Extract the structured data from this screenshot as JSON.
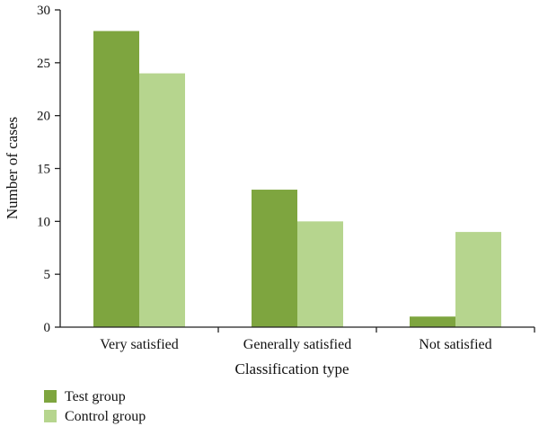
{
  "chart_data": {
    "type": "bar",
    "categories": [
      "Very satisfied",
      "Generally satisfied",
      "Not satisfied"
    ],
    "series": [
      {
        "name": "Test group",
        "values": [
          28,
          13,
          1
        ],
        "color": "#7ea53f"
      },
      {
        "name": "Control group",
        "values": [
          24,
          10,
          9
        ],
        "color": "#b6d58e"
      }
    ],
    "xlabel": "Classification type",
    "ylabel": "Number of cases",
    "ylim": [
      0,
      30
    ],
    "yticks": [
      0,
      5,
      10,
      15,
      20,
      25,
      30
    ],
    "grid": false,
    "legend_position": "bottom-left"
  }
}
